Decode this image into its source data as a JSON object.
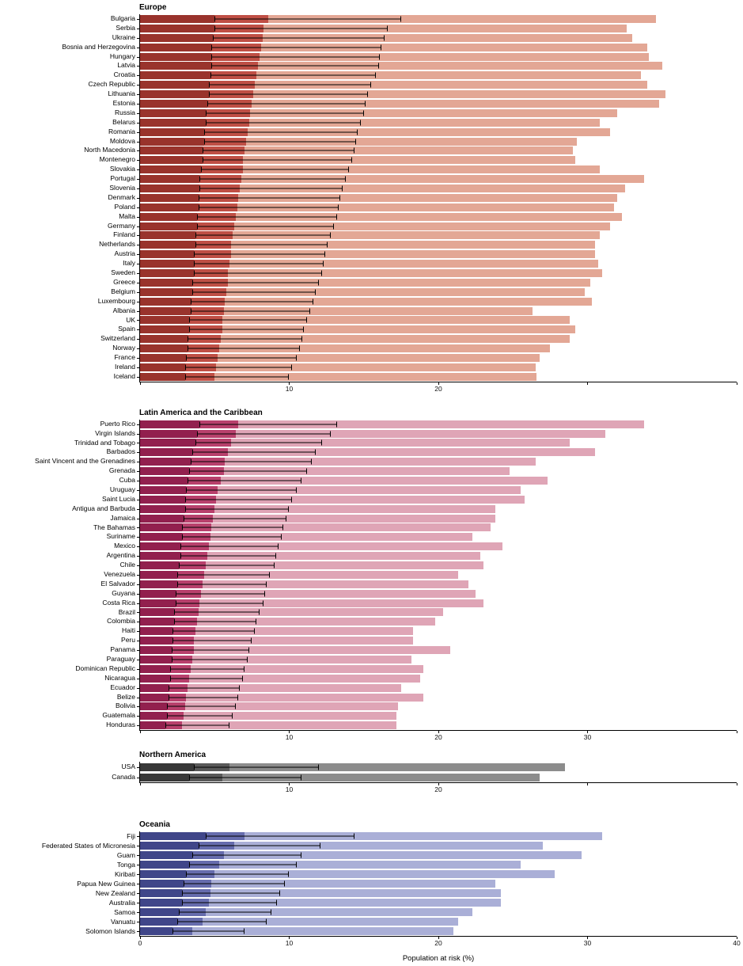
{
  "figure": {
    "xlabel": "Population at risk (%)",
    "xlim": [
      0,
      40
    ],
    "x_tick_values": [
      0,
      10,
      20,
      30,
      40
    ],
    "background": "#ffffff"
  },
  "chart_data": [
    {
      "type": "bar",
      "orientation": "horizontal",
      "title": "Europe",
      "xlim": [
        0,
        40
      ],
      "grid": false,
      "colors": {
        "light": "#E3A795",
        "dark": "#BF4F45",
        "darkest": "#99332C",
        "error_bar": "#000000"
      },
      "row_format": [
        "country",
        "ci_lower",
        "estimate",
        "ci_upper",
        "max_value"
      ],
      "x_ticks": [
        {
          "v": 0,
          "label": ""
        },
        {
          "v": 10,
          "label": "10"
        },
        {
          "v": 20,
          "label": "20"
        },
        {
          "v": 30,
          "label": ""
        },
        {
          "v": 40,
          "label": ""
        }
      ],
      "rows": [
        [
          "Bulgaria",
          5.0,
          8.6,
          17.5,
          34.6
        ],
        [
          "Serbia",
          5.0,
          8.3,
          16.6,
          32.6
        ],
        [
          "Ukraine",
          4.9,
          8.2,
          16.4,
          33.0
        ],
        [
          "Bosnia and Herzegovina",
          4.8,
          8.1,
          16.2,
          34.0
        ],
        [
          "Hungary",
          4.8,
          8.0,
          16.1,
          34.1
        ],
        [
          "Latvia",
          4.8,
          7.9,
          16.0,
          35.0
        ],
        [
          "Croatia",
          4.7,
          7.8,
          15.8,
          33.6
        ],
        [
          "Czech Republic",
          4.6,
          7.7,
          15.5,
          34.0
        ],
        [
          "Lithuania",
          4.6,
          7.6,
          15.3,
          35.2
        ],
        [
          "Estonia",
          4.5,
          7.5,
          15.1,
          34.8
        ],
        [
          "Russia",
          4.4,
          7.4,
          15.0,
          32.0
        ],
        [
          "Belarus",
          4.4,
          7.3,
          14.8,
          30.8
        ],
        [
          "Romania",
          4.3,
          7.2,
          14.6,
          31.5
        ],
        [
          "Moldova",
          4.3,
          7.1,
          14.5,
          29.3
        ],
        [
          "North Macedonia",
          4.2,
          7.0,
          14.4,
          29.0
        ],
        [
          "Montenegro",
          4.2,
          6.9,
          14.2,
          29.2
        ],
        [
          "Slovakia",
          4.1,
          6.9,
          14.0,
          30.8
        ],
        [
          "Portugal",
          4.0,
          6.8,
          13.8,
          33.8
        ],
        [
          "Slovenia",
          4.0,
          6.7,
          13.6,
          32.5
        ],
        [
          "Denmark",
          3.9,
          6.6,
          13.4,
          32.0
        ],
        [
          "Poland",
          3.9,
          6.5,
          13.3,
          31.8
        ],
        [
          "Malta",
          3.8,
          6.4,
          13.2,
          32.3
        ],
        [
          "Germany",
          3.8,
          6.3,
          13.0,
          31.5
        ],
        [
          "Finland",
          3.7,
          6.2,
          12.8,
          30.8
        ],
        [
          "Netherlands",
          3.7,
          6.1,
          12.6,
          30.5
        ],
        [
          "Austria",
          3.6,
          6.1,
          12.4,
          30.5
        ],
        [
          "Italy",
          3.6,
          6.0,
          12.3,
          30.7
        ],
        [
          "Sweden",
          3.6,
          5.9,
          12.2,
          31.0
        ],
        [
          "Greece",
          3.5,
          5.9,
          12.0,
          30.2
        ],
        [
          "Belgium",
          3.5,
          5.8,
          11.8,
          29.8
        ],
        [
          "Luxembourg",
          3.4,
          5.7,
          11.6,
          30.3
        ],
        [
          "Albania",
          3.4,
          5.6,
          11.4,
          26.3
        ],
        [
          "UK",
          3.3,
          5.5,
          11.2,
          28.8
        ],
        [
          "Spain",
          3.3,
          5.5,
          11.0,
          29.2
        ],
        [
          "Switzerland",
          3.2,
          5.4,
          10.9,
          28.8
        ],
        [
          "Norway",
          3.2,
          5.3,
          10.7,
          27.5
        ],
        [
          "France",
          3.1,
          5.2,
          10.5,
          26.8
        ],
        [
          "Ireland",
          3.0,
          5.1,
          10.2,
          26.5
        ],
        [
          "Iceland",
          3.0,
          5.0,
          10.0,
          26.6
        ]
      ]
    },
    {
      "type": "bar",
      "orientation": "horizontal",
      "title": "Latin America and the Caribbean",
      "xlim": [
        0,
        40
      ],
      "grid": false,
      "colors": {
        "light": "#DFA5B6",
        "dark": "#B8406C",
        "darkest": "#92204E",
        "error_bar": "#000000"
      },
      "row_format": [
        "country",
        "ci_lower",
        "estimate",
        "ci_upper",
        "max_value"
      ],
      "x_ticks": [
        {
          "v": 0,
          "label": ""
        },
        {
          "v": 10,
          "label": "10"
        },
        {
          "v": 20,
          "label": "20"
        },
        {
          "v": 30,
          "label": "30"
        },
        {
          "v": 40,
          "label": ""
        }
      ],
      "rows": [
        [
          "Puerto Rico",
          4.0,
          6.6,
          13.2,
          33.8
        ],
        [
          "Virgin Islands",
          3.8,
          6.4,
          12.8,
          31.2
        ],
        [
          "Trinidad and Tobago",
          3.7,
          6.1,
          12.2,
          28.8
        ],
        [
          "Barbados",
          3.5,
          5.9,
          11.8,
          30.5
        ],
        [
          "Saint Vincent and the Grenadines",
          3.4,
          5.7,
          11.5,
          26.5
        ],
        [
          "Grenada",
          3.3,
          5.6,
          11.2,
          24.8
        ],
        [
          "Cuba",
          3.2,
          5.4,
          10.8,
          27.3
        ],
        [
          "Uruguay",
          3.1,
          5.2,
          10.5,
          25.5
        ],
        [
          "Saint Lucia",
          3.0,
          5.1,
          10.2,
          25.8
        ],
        [
          "Antigua and Barbuda",
          3.0,
          5.0,
          10.0,
          23.8
        ],
        [
          "Jamaica",
          2.9,
          4.9,
          9.8,
          23.8
        ],
        [
          "The Bahamas",
          2.8,
          4.8,
          9.6,
          23.5
        ],
        [
          "Suriname",
          2.8,
          4.7,
          9.5,
          22.3
        ],
        [
          "Mexico",
          2.7,
          4.6,
          9.3,
          24.3
        ],
        [
          "Argentina",
          2.7,
          4.5,
          9.1,
          22.8
        ],
        [
          "Chile",
          2.6,
          4.4,
          9.0,
          23.0
        ],
        [
          "Venezuela",
          2.5,
          4.3,
          8.7,
          21.3
        ],
        [
          "El Salvador",
          2.5,
          4.2,
          8.5,
          22.0
        ],
        [
          "Guyana",
          2.4,
          4.1,
          8.4,
          22.5
        ],
        [
          "Costa Rica",
          2.4,
          4.0,
          8.3,
          23.0
        ],
        [
          "Brazil",
          2.3,
          3.9,
          8.0,
          20.3
        ],
        [
          "Colombia",
          2.3,
          3.8,
          7.8,
          19.8
        ],
        [
          "Haiti",
          2.2,
          3.7,
          7.7,
          18.3
        ],
        [
          "Peru",
          2.2,
          3.6,
          7.5,
          18.3
        ],
        [
          "Panama",
          2.1,
          3.6,
          7.3,
          20.8
        ],
        [
          "Paraguay",
          2.1,
          3.5,
          7.2,
          18.2
        ],
        [
          "Dominican Republic",
          2.0,
          3.4,
          7.0,
          19.0
        ],
        [
          "Nicaragua",
          2.0,
          3.3,
          6.9,
          18.8
        ],
        [
          "Ecuador",
          1.9,
          3.2,
          6.7,
          17.5
        ],
        [
          "Belize",
          1.9,
          3.1,
          6.6,
          19.0
        ],
        [
          "Bolivia",
          1.8,
          3.0,
          6.4,
          17.3
        ],
        [
          "Guatemala",
          1.8,
          2.9,
          6.2,
          17.2
        ],
        [
          "Honduras",
          1.7,
          2.8,
          6.0,
          17.2
        ]
      ]
    },
    {
      "type": "bar",
      "orientation": "horizontal",
      "title": "Northern America",
      "xlim": [
        0,
        40
      ],
      "grid": false,
      "colors": {
        "light": "#8C8C8C",
        "dark": "#595959",
        "darkest": "#383838",
        "error_bar": "#000000"
      },
      "row_format": [
        "country",
        "ci_lower",
        "estimate",
        "ci_upper",
        "max_value"
      ],
      "x_ticks": [
        {
          "v": 0,
          "label": ""
        },
        {
          "v": 10,
          "label": "10"
        },
        {
          "v": 20,
          "label": "20"
        },
        {
          "v": 30,
          "label": ""
        },
        {
          "v": 40,
          "label": ""
        }
      ],
      "rows": [
        [
          "USA",
          3.6,
          6.0,
          12.0,
          28.5
        ],
        [
          "Canada",
          3.3,
          5.5,
          10.8,
          26.8
        ]
      ]
    },
    {
      "type": "bar",
      "orientation": "horizontal",
      "title": "Oceania",
      "xlim": [
        0,
        40
      ],
      "grid": false,
      "colors": {
        "light": "#AAAFD7",
        "dark": "#666CAD",
        "darkest": "#404689",
        "error_bar": "#000000"
      },
      "row_format": [
        "country",
        "ci_lower",
        "estimate",
        "ci_upper",
        "max_value"
      ],
      "x_ticks": [
        {
          "v": 0,
          "label": "0"
        },
        {
          "v": 10,
          "label": "10"
        },
        {
          "v": 20,
          "label": "20"
        },
        {
          "v": 30,
          "label": "30"
        },
        {
          "v": 40,
          "label": "40"
        }
      ],
      "rows": [
        [
          "Fiji",
          4.4,
          7.0,
          14.4,
          31.0
        ],
        [
          "Federated States of Micronesia",
          3.9,
          6.3,
          12.1,
          27.0
        ],
        [
          "Guam",
          3.5,
          5.6,
          10.8,
          29.6
        ],
        [
          "Tonga",
          3.3,
          5.3,
          10.5,
          25.5
        ],
        [
          "Kiribati",
          3.1,
          5.0,
          10.0,
          27.8
        ],
        [
          "Papua New Guinea",
          2.9,
          4.8,
          9.7,
          23.8
        ],
        [
          "New Zealand",
          2.8,
          4.7,
          9.4,
          24.2
        ],
        [
          "Australia",
          2.8,
          4.6,
          9.2,
          24.2
        ],
        [
          "Samoa",
          2.6,
          4.4,
          8.8,
          22.3
        ],
        [
          "Vanuatu",
          2.5,
          4.2,
          8.5,
          21.3
        ],
        [
          "Solomon Islands",
          2.2,
          3.5,
          7.0,
          21.0
        ]
      ]
    }
  ]
}
